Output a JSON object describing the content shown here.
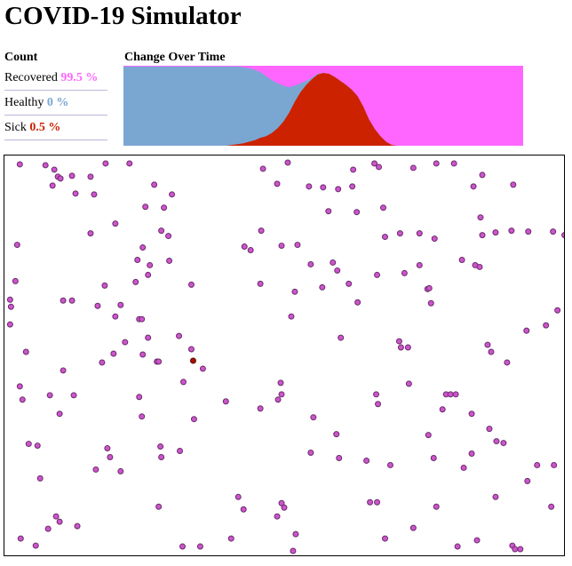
{
  "title": "COVID-19 Simulator",
  "count": {
    "header": "Count",
    "rows": [
      {
        "label": "Recovered",
        "value": "99.5 %",
        "color": "#ff66ff"
      },
      {
        "label": "Healthy",
        "value": "0 %",
        "color": "#7aa6d2"
      },
      {
        "label": "Sick",
        "value": "0.5 %",
        "color": "#cc2200"
      }
    ]
  },
  "chart_title": "Change Over Time",
  "chart_data": {
    "type": "area",
    "stacked": true,
    "normalized_percent": true,
    "series": [
      {
        "name": "Sick",
        "color": "#cc2200",
        "values": [
          0,
          0,
          0,
          0,
          0,
          0,
          0,
          0,
          0,
          0,
          0,
          0,
          0,
          0,
          0,
          0,
          0,
          0,
          0,
          1,
          2,
          3,
          5,
          7,
          10,
          12,
          16,
          22,
          30,
          41,
          55,
          67,
          76,
          83,
          89,
          91,
          90,
          86,
          81,
          76,
          70,
          62,
          49,
          33,
          21,
          12,
          5,
          1,
          0,
          0,
          0,
          0,
          0,
          0,
          0,
          0,
          0,
          0,
          0,
          0,
          0,
          0,
          0,
          0,
          0,
          0,
          0,
          0,
          0,
          0,
          0
        ]
      },
      {
        "name": "Healthy",
        "color": "#7aa6d2",
        "values": [
          99,
          99,
          99,
          99,
          99,
          99,
          99,
          99,
          99,
          99,
          99,
          99,
          99,
          99,
          99,
          99,
          99,
          99,
          99,
          98,
          97,
          95,
          92,
          88,
          82,
          75,
          66,
          56,
          45,
          32,
          20,
          11,
          5,
          2,
          1,
          0,
          0,
          0,
          0,
          0,
          0,
          0,
          0,
          0,
          0,
          0,
          0,
          0,
          0,
          0,
          0,
          0,
          0,
          0,
          0,
          0,
          0,
          0,
          0,
          0,
          0,
          0,
          0,
          0,
          0,
          0,
          0,
          0,
          0,
          0,
          0
        ]
      },
      {
        "name": "Recovered",
        "color": "#ff66ff",
        "values": "remainder of 100%"
      }
    ]
  },
  "simulation": {
    "dot_color": "#cc55cc",
    "dot_stroke": "#6a2a6a",
    "sick_color": "#aa1100",
    "healthy_dots": 0,
    "sick_dots": 1,
    "recovered_dots": 196
  }
}
